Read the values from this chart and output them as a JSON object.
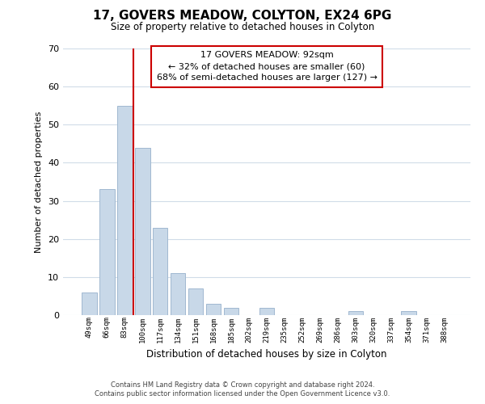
{
  "title": "17, GOVERS MEADOW, COLYTON, EX24 6PG",
  "subtitle": "Size of property relative to detached houses in Colyton",
  "xlabel": "Distribution of detached houses by size in Colyton",
  "ylabel": "Number of detached properties",
  "bar_labels": [
    "49sqm",
    "66sqm",
    "83sqm",
    "100sqm",
    "117sqm",
    "134sqm",
    "151sqm",
    "168sqm",
    "185sqm",
    "202sqm",
    "219sqm",
    "235sqm",
    "252sqm",
    "269sqm",
    "286sqm",
    "303sqm",
    "320sqm",
    "337sqm",
    "354sqm",
    "371sqm",
    "388sqm"
  ],
  "bar_values": [
    6,
    33,
    55,
    44,
    23,
    11,
    7,
    3,
    2,
    0,
    2,
    0,
    0,
    0,
    0,
    1,
    0,
    0,
    1,
    0,
    0
  ],
  "bar_color": "#c8d8e8",
  "bar_edge_color": "#a0b8d0",
  "vline_color": "#cc0000",
  "ylim": [
    0,
    70
  ],
  "yticks": [
    0,
    10,
    20,
    30,
    40,
    50,
    60,
    70
  ],
  "annotation_title": "17 GOVERS MEADOW: 92sqm",
  "annotation_line1": "← 32% of detached houses are smaller (60)",
  "annotation_line2": "68% of semi-detached houses are larger (127) →",
  "annotation_box_color": "#ffffff",
  "annotation_box_edge": "#cc0000",
  "footer1": "Contains HM Land Registry data © Crown copyright and database right 2024.",
  "footer2": "Contains public sector information licensed under the Open Government Licence v3.0.",
  "background_color": "#ffffff",
  "grid_color": "#d0dce8"
}
